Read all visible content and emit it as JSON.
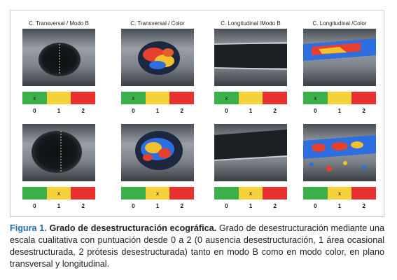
{
  "figure": {
    "columns": [
      {
        "title": "C. Transversal / Modo B",
        "image": "ultrasound-transversal-b-mode"
      },
      {
        "title": "C. Transversal / Color",
        "image": "ultrasound-transversal-color-doppler"
      },
      {
        "title": "C. Longitudinal /Modo B",
        "image": "ultrasound-longitudinal-b-mode"
      },
      {
        "title": "C. Longitudinal /Color",
        "image": "ultrasound-longitudinal-color-doppler"
      }
    ],
    "scale": {
      "numbers": [
        "0",
        "1",
        "2"
      ],
      "mark": "x",
      "colors": [
        "#3cb04a",
        "#f4d23c",
        "#e8312f"
      ]
    },
    "rows": [
      {
        "marks": [
          0,
          0,
          0,
          0
        ]
      },
      {
        "marks": [
          1,
          1,
          1,
          1
        ]
      }
    ]
  },
  "caption": {
    "label": "Figura 1.",
    "title": "Grado de desestructuración ecográfica.",
    "text": "Grado de desestructuración mediante una escala cualitativa con puntuación desde 0 a 2 (0 ausencia desestructuración, 1 área ocasional desestructurada, 2 prótesis desestructurada) tanto en modo B como en modo color, en plano transversal y longitudinal."
  }
}
